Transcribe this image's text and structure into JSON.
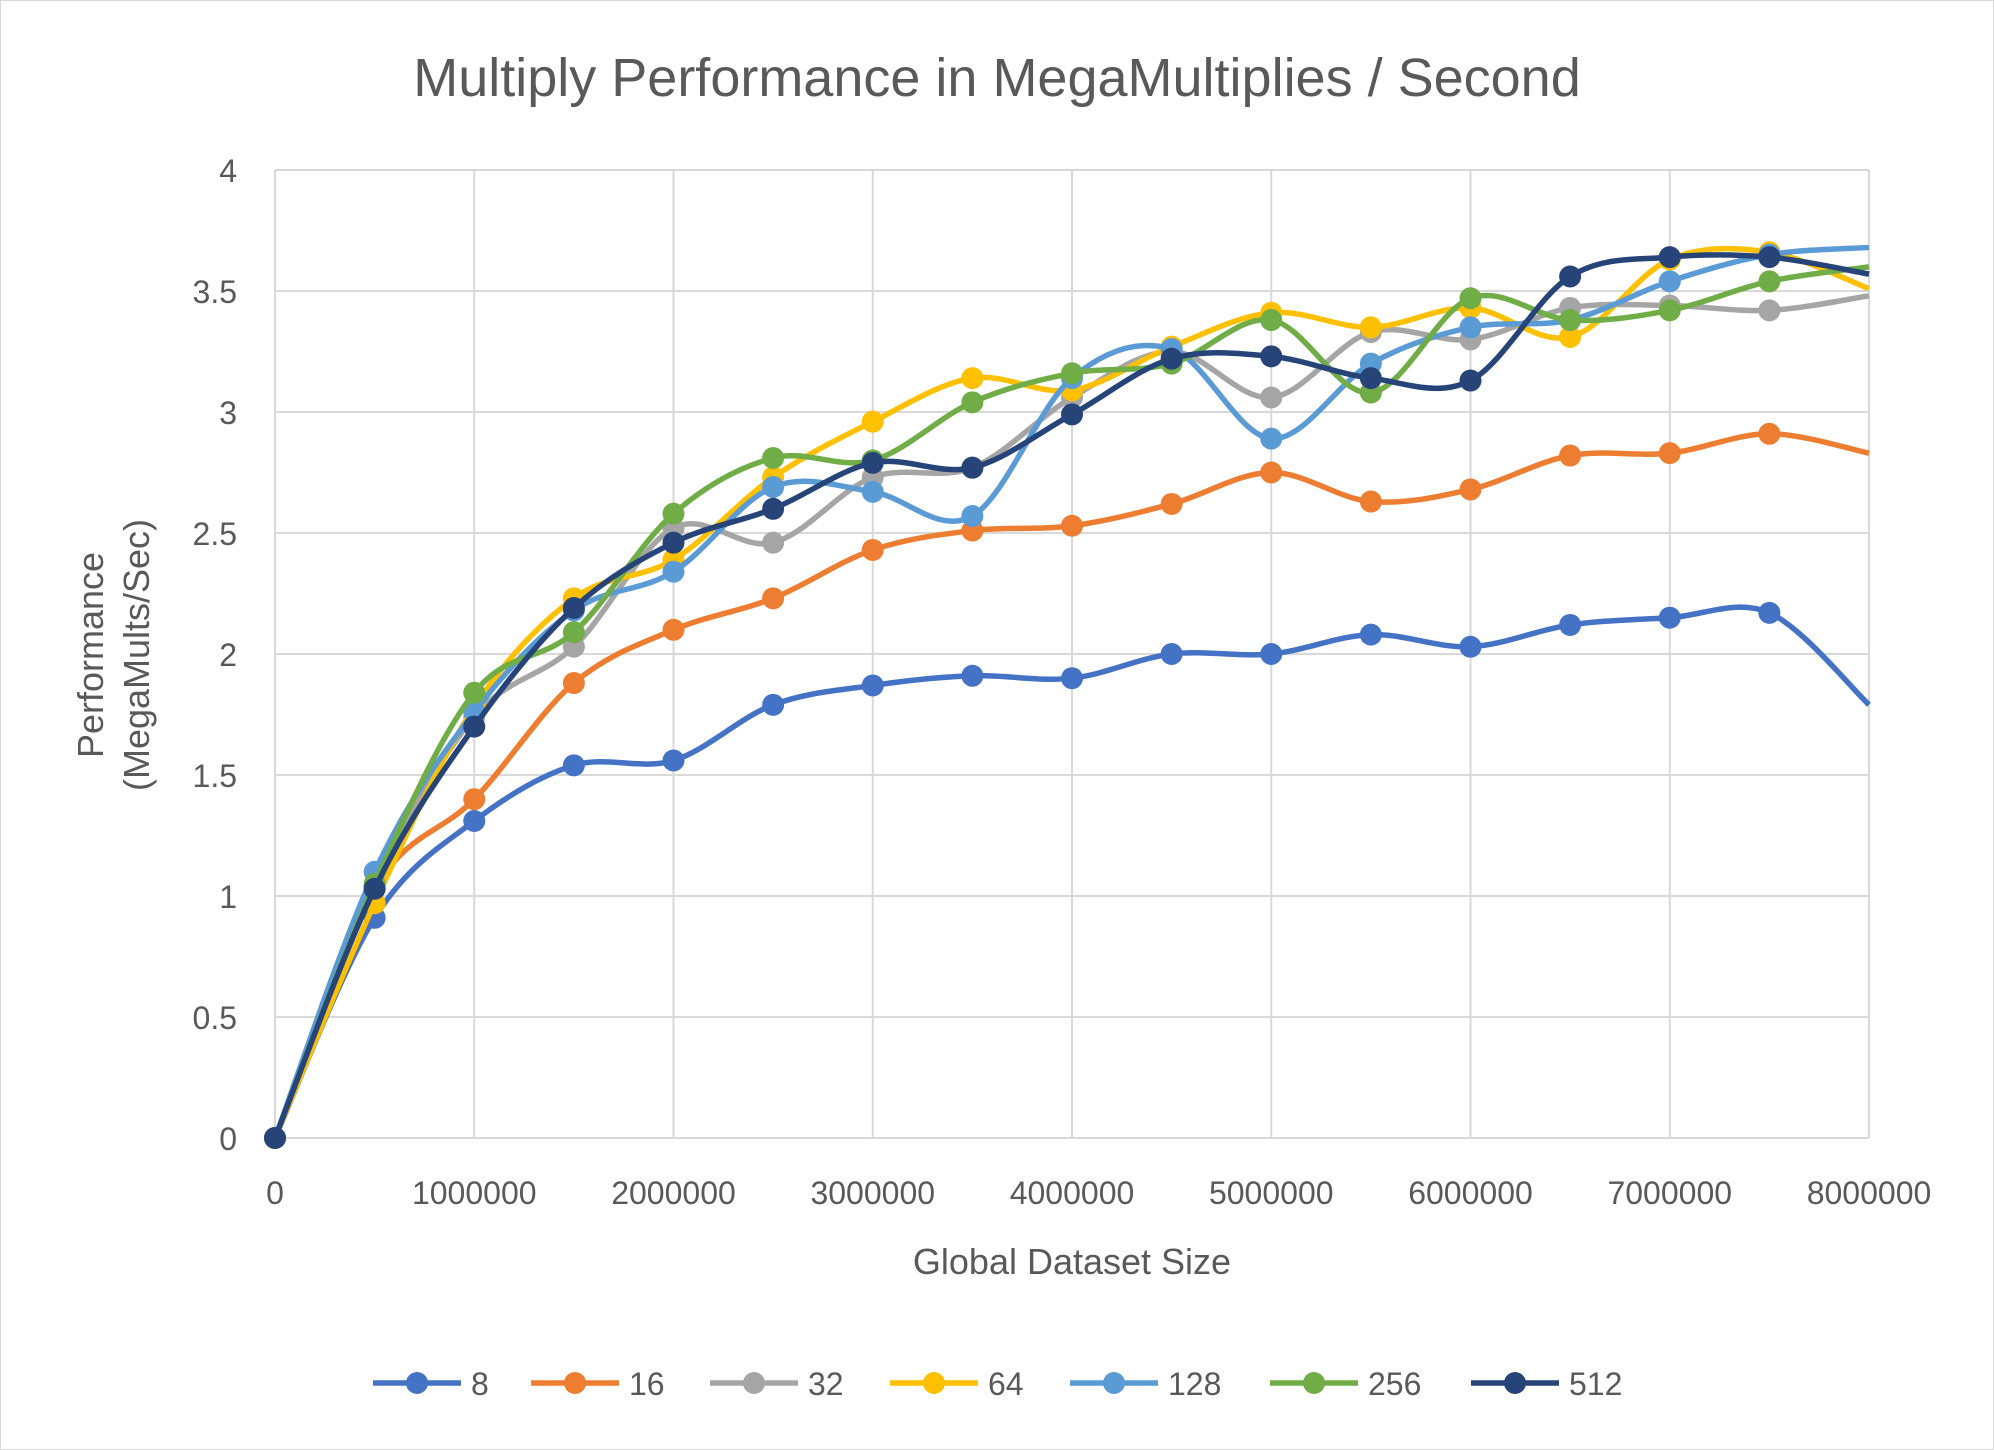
{
  "chart_data": {
    "type": "line",
    "title": "Multiply Performance in MegaMultiplies / Second",
    "xlabel": "Global Dataset Size",
    "ylabel_lines": [
      "Performance",
      "(MegaMults/Sec)"
    ],
    "xlim": [
      0,
      8000000
    ],
    "ylim": [
      0,
      4
    ],
    "x_ticks": [
      "0",
      "1000000",
      "2000000",
      "3000000",
      "4000000",
      "5000000",
      "6000000",
      "7000000",
      "8000000"
    ],
    "y_ticks": [
      "0",
      "0.5",
      "1",
      "1.5",
      "2",
      "2.5",
      "3",
      "3.5",
      "4"
    ],
    "grid": true,
    "legend_position": "bottom",
    "x": [
      0,
      500000,
      1000000,
      1500000,
      2000000,
      2500000,
      3000000,
      3500000,
      4000000,
      4500000,
      5000000,
      5500000,
      6000000,
      6500000,
      7000000,
      7500000,
      8000000
    ],
    "series": [
      {
        "name": "8",
        "color": "#4472C4",
        "values": [
          0,
          0.91,
          1.31,
          1.54,
          1.56,
          1.79,
          1.87,
          1.91,
          1.9,
          2.0,
          2.0,
          2.08,
          2.03,
          2.12,
          2.15,
          2.17,
          1.79
        ]
      },
      {
        "name": "16",
        "color": "#ED7D31",
        "values": [
          0,
          1.03,
          1.4,
          1.88,
          2.1,
          2.23,
          2.43,
          2.51,
          2.53,
          2.62,
          2.75,
          2.63,
          2.68,
          2.82,
          2.83,
          2.91,
          2.83
        ]
      },
      {
        "name": "32",
        "color": "#A5A5A5",
        "values": [
          0,
          1.04,
          1.74,
          2.03,
          2.52,
          2.46,
          2.73,
          2.77,
          3.06,
          3.25,
          3.06,
          3.33,
          3.3,
          3.43,
          3.44,
          3.42,
          3.48
        ]
      },
      {
        "name": "64",
        "color": "#FFC000",
        "values": [
          0,
          0.97,
          1.78,
          2.23,
          2.39,
          2.73,
          2.96,
          3.14,
          3.09,
          3.27,
          3.41,
          3.35,
          3.43,
          3.31,
          3.63,
          3.66,
          3.51
        ]
      },
      {
        "name": "128",
        "color": "#5B9BD5",
        "values": [
          0,
          1.1,
          1.76,
          2.18,
          2.34,
          2.69,
          2.67,
          2.57,
          3.14,
          3.26,
          2.89,
          3.2,
          3.35,
          3.38,
          3.54,
          3.65,
          3.68
        ]
      },
      {
        "name": "256",
        "color": "#70AD47",
        "values": [
          0,
          1.05,
          1.84,
          2.09,
          2.58,
          2.81,
          2.8,
          3.04,
          3.16,
          3.2,
          3.38,
          3.08,
          3.47,
          3.38,
          3.42,
          3.54,
          3.6
        ]
      },
      {
        "name": "512",
        "color": "#264478",
        "values": [
          0,
          1.03,
          1.7,
          2.19,
          2.46,
          2.6,
          2.79,
          2.77,
          2.99,
          3.22,
          3.23,
          3.14,
          3.13,
          3.56,
          3.64,
          3.64,
          3.57
        ]
      }
    ]
  }
}
